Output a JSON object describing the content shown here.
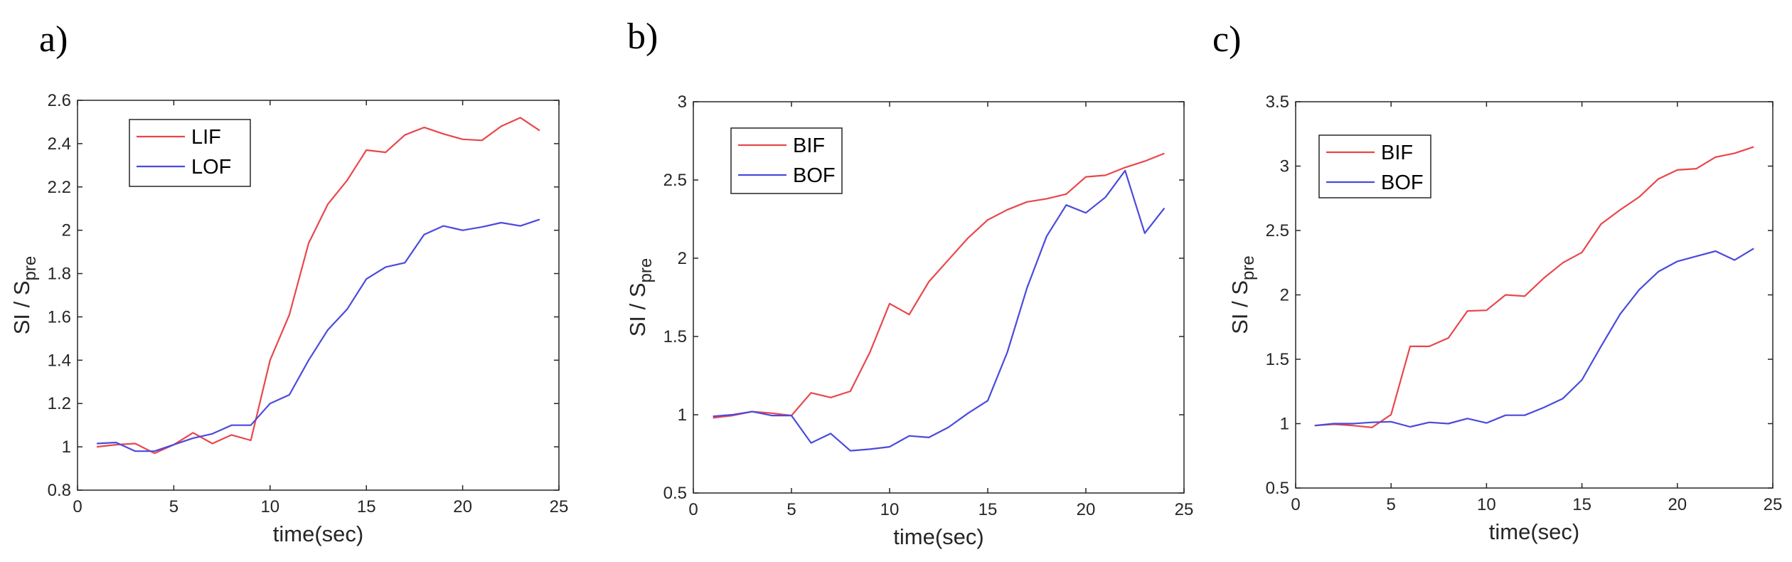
{
  "chart_data": [
    {
      "type": "line",
      "panel_label": "a)",
      "xlabel": "time(sec)",
      "ylabel": "SI / S",
      "ylabel_subscript": "pre",
      "xlim": [
        0,
        25
      ],
      "ylim": [
        0.8,
        2.6
      ],
      "xticks": [
        0,
        5,
        10,
        15,
        20,
        25
      ],
      "yticks": [
        0.8,
        1,
        1.2,
        1.4,
        1.6,
        1.8,
        2,
        2.2,
        2.4,
        2.6
      ],
      "ytick_labels": [
        "0.8",
        "1",
        "1.2",
        "1.4",
        "1.6",
        "1.8",
        "2",
        "2.2",
        "2.4",
        "2.6"
      ],
      "grid": false,
      "legend": "upper-left",
      "x": [
        1,
        2,
        3,
        4,
        5,
        6,
        7,
        8,
        9,
        10,
        11,
        12,
        13,
        14,
        15,
        16,
        17,
        18,
        19,
        20,
        21,
        22,
        23,
        24
      ],
      "series": [
        {
          "name": "LIF",
          "color": "#e8474b",
          "values": [
            1.0,
            1.01,
            1.015,
            0.97,
            1.01,
            1.065,
            1.015,
            1.055,
            1.03,
            1.4,
            1.61,
            1.94,
            2.12,
            2.23,
            2.37,
            2.36,
            2.44,
            2.475,
            2.445,
            2.42,
            2.415,
            2.48,
            2.52,
            2.46
          ]
        },
        {
          "name": "LOF",
          "color": "#4a4ade",
          "values": [
            1.015,
            1.02,
            0.98,
            0.98,
            1.01,
            1.04,
            1.06,
            1.1,
            1.1,
            1.2,
            1.24,
            1.4,
            1.54,
            1.635,
            1.775,
            1.83,
            1.85,
            1.98,
            2.02,
            2.0,
            2.015,
            2.035,
            2.02,
            2.05
          ]
        }
      ]
    },
    {
      "type": "line",
      "panel_label": "b)",
      "xlabel": "time(sec)",
      "ylabel": "SI / S",
      "ylabel_subscript": "pre",
      "xlim": [
        0,
        25
      ],
      "ylim": [
        0.5,
        3
      ],
      "xticks": [
        0,
        5,
        10,
        15,
        20,
        25
      ],
      "yticks": [
        0.5,
        1,
        1.5,
        2,
        2.5,
        3
      ],
      "ytick_labels": [
        "0.5",
        "1",
        "1.5",
        "2",
        "2.5",
        "3"
      ],
      "grid": false,
      "legend": "upper-left",
      "x": [
        1,
        2,
        3,
        4,
        5,
        6,
        7,
        8,
        9,
        10,
        11,
        12,
        13,
        14,
        15,
        16,
        17,
        18,
        19,
        20,
        21,
        22,
        23,
        24
      ],
      "series": [
        {
          "name": "BIF",
          "color": "#e8474b",
          "values": [
            0.98,
            0.995,
            1.02,
            1.01,
            0.995,
            1.14,
            1.11,
            1.15,
            1.4,
            1.71,
            1.64,
            1.85,
            1.99,
            2.13,
            2.245,
            2.31,
            2.36,
            2.38,
            2.41,
            2.52,
            2.53,
            2.58,
            2.62,
            2.67
          ]
        },
        {
          "name": "BOF",
          "color": "#4a4ade",
          "values": [
            0.99,
            1.0,
            1.02,
            0.995,
            0.995,
            0.82,
            0.88,
            0.77,
            0.78,
            0.795,
            0.865,
            0.855,
            0.92,
            1.01,
            1.09,
            1.4,
            1.81,
            2.14,
            2.34,
            2.29,
            2.39,
            2.56,
            2.16,
            2.32
          ]
        }
      ]
    },
    {
      "type": "line",
      "panel_label": "c)",
      "xlabel": "time(sec)",
      "ylabel": "SI / S",
      "ylabel_subscript": "pre",
      "xlim": [
        0,
        25
      ],
      "ylim": [
        0.5,
        3.5
      ],
      "xticks": [
        0,
        5,
        10,
        15,
        20,
        25
      ],
      "yticks": [
        0.5,
        1,
        1.5,
        2,
        2.5,
        3,
        3.5
      ],
      "ytick_labels": [
        "0.5",
        "1",
        "1.5",
        "2",
        "2.5",
        "3",
        "3.5"
      ],
      "grid": false,
      "legend": "upper-left",
      "x": [
        1,
        2,
        3,
        4,
        5,
        6,
        7,
        8,
        9,
        10,
        11,
        12,
        13,
        14,
        15,
        16,
        17,
        18,
        19,
        20,
        21,
        22,
        23,
        24
      ],
      "series": [
        {
          "name": "BIF",
          "color": "#e8474b",
          "values": [
            0.985,
            0.995,
            0.985,
            0.97,
            1.07,
            1.6,
            1.6,
            1.665,
            1.875,
            1.88,
            2.0,
            1.99,
            2.13,
            2.25,
            2.33,
            2.55,
            2.66,
            2.76,
            2.9,
            2.97,
            2.98,
            3.07,
            3.1,
            3.15
          ]
        },
        {
          "name": "BOF",
          "color": "#4a4ade",
          "values": [
            0.985,
            1.0,
            1.0,
            1.01,
            1.015,
            0.975,
            1.01,
            1.0,
            1.04,
            1.005,
            1.065,
            1.065,
            1.125,
            1.195,
            1.34,
            1.6,
            1.85,
            2.04,
            2.18,
            2.26,
            2.3,
            2.34,
            2.27,
            2.36
          ]
        }
      ]
    }
  ]
}
